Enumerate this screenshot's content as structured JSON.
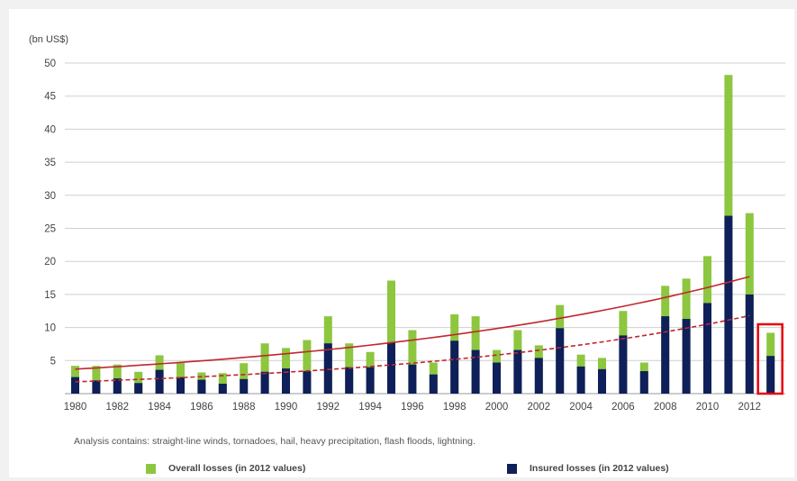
{
  "chart_data": {
    "type": "bar",
    "unit_label": "(bn US$)",
    "ylim": [
      0,
      50
    ],
    "yticks": [
      5,
      10,
      15,
      20,
      25,
      30,
      35,
      40,
      45,
      50
    ],
    "grid": true,
    "x_tick_labels": [
      "1980",
      "1982",
      "1984",
      "1986",
      "1988",
      "1990",
      "1992",
      "1994",
      "1996",
      "1998",
      "2000",
      "2002",
      "2004",
      "2006",
      "2008",
      "2010",
      "2012"
    ],
    "categories": [
      "1980",
      "1981",
      "1982",
      "1983",
      "1984",
      "1985",
      "1986",
      "1987",
      "1988",
      "1989",
      "1990",
      "1991",
      "1992",
      "1993",
      "1994",
      "1995",
      "1996",
      "1997",
      "1998",
      "1999",
      "2000",
      "2001",
      "2002",
      "2003",
      "2004",
      "2005",
      "2006",
      "2007",
      "2008",
      "2009",
      "2010",
      "2011",
      "2012",
      "2013"
    ],
    "series": [
      {
        "name": "Overall losses (in 2012 values)",
        "color": "#8dc63f",
        "values": [
          4.2,
          4.2,
          4.4,
          3.3,
          5.8,
          4.7,
          3.2,
          3.1,
          4.6,
          7.6,
          6.9,
          8.1,
          11.7,
          7.6,
          6.3,
          17.1,
          9.6,
          4.7,
          12.0,
          11.7,
          6.6,
          9.6,
          7.3,
          13.4,
          5.9,
          5.4,
          12.5,
          4.7,
          16.3,
          17.4,
          20.8,
          48.2,
          27.3,
          9.2
        ]
      },
      {
        "name": "Insured losses (in 2012 values)",
        "color": "#0f1f5a",
        "values": [
          2.5,
          2.0,
          2.3,
          1.6,
          3.6,
          2.5,
          2.1,
          1.5,
          2.2,
          3.3,
          3.8,
          3.4,
          7.6,
          4.0,
          4.0,
          7.7,
          4.4,
          2.9,
          8.0,
          6.6,
          4.7,
          6.6,
          5.4,
          9.9,
          4.1,
          3.7,
          8.8,
          3.4,
          11.7,
          11.3,
          13.7,
          26.9,
          15.0,
          5.7
        ]
      }
    ],
    "trend_lines": [
      {
        "series": "Overall losses (in 2012 values)",
        "color": "#c0272d",
        "style": "solid",
        "from": [
          "1980",
          3.7
        ],
        "to": [
          "2012",
          17.7
        ]
      },
      {
        "series": "Insured losses (in 2012 values)",
        "color": "#c0272d",
        "style": "dashed",
        "from": [
          "1980",
          1.8
        ],
        "to": [
          "2012",
          11.8
        ]
      }
    ],
    "highlight": {
      "category": "2013",
      "color": "#e8000d"
    },
    "annotation": "Analysis contains: straight-line winds, tornadoes, hail, heavy precipitation, flash floods, lightning."
  }
}
